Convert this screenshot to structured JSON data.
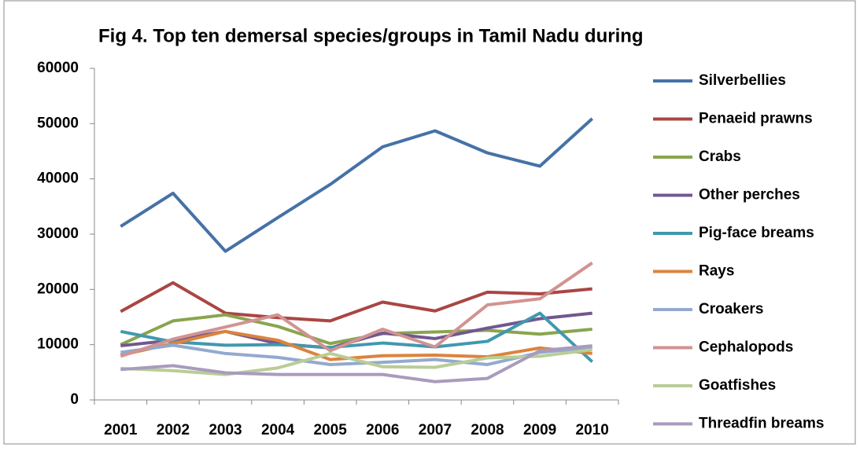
{
  "chart_data": {
    "type": "line",
    "title": "Fig 4. Top ten demersal species/groups in Tamil Nadu during",
    "categories": [
      "2001",
      "2002",
      "2003",
      "2004",
      "2005",
      "2006",
      "2007",
      "2008",
      "2009",
      "2010"
    ],
    "ylim": [
      0,
      60000
    ],
    "yticks": [
      0,
      10000,
      20000,
      30000,
      40000,
      50000,
      60000
    ],
    "grid": false,
    "legend": "right",
    "series": [
      {
        "name": "Silverbellies",
        "color": "#4572A7",
        "values": [
          31400,
          37400,
          26900,
          33000,
          39000,
          45800,
          48700,
          44700,
          42300,
          50900
        ]
      },
      {
        "name": "Penaeid prawns",
        "color": "#AA4643",
        "values": [
          16000,
          21200,
          15700,
          14900,
          14300,
          17700,
          16100,
          19500,
          19200,
          20100
        ]
      },
      {
        "name": "Crabs",
        "color": "#89A54E",
        "values": [
          10000,
          14300,
          15400,
          13300,
          10200,
          12000,
          12300,
          12600,
          11900,
          12800
        ]
      },
      {
        "name": "Other perches",
        "color": "#71588F",
        "values": [
          9800,
          10800,
          12400,
          10200,
          9400,
          12100,
          11100,
          13000,
          14700,
          15700
        ]
      },
      {
        "name": "Pig-face breams",
        "color": "#4198AF",
        "values": [
          12400,
          10500,
          9900,
          10000,
          9500,
          10300,
          9600,
          10600,
          15700,
          6900
        ]
      },
      {
        "name": "Rays",
        "color": "#DB843D",
        "values": [
          8100,
          10200,
          12400,
          10800,
          7300,
          8000,
          8100,
          7800,
          9400,
          8400
        ]
      },
      {
        "name": "Croakers",
        "color": "#93A9CF",
        "values": [
          8600,
          9900,
          8400,
          7700,
          6400,
          6800,
          7300,
          6400,
          8600,
          9500
        ]
      },
      {
        "name": "Cephalopods",
        "color": "#D19392",
        "values": [
          7900,
          11000,
          13200,
          15400,
          8900,
          12800,
          9600,
          17200,
          18300,
          24800
        ]
      },
      {
        "name": "Goatfishes",
        "color": "#B9CD96",
        "values": [
          5700,
          5300,
          4600,
          5800,
          8400,
          6000,
          5900,
          7600,
          7900,
          9100
        ]
      },
      {
        "name": "Threadfin breams",
        "color": "#A99BBD",
        "values": [
          5500,
          6200,
          4900,
          4600,
          4600,
          4600,
          3300,
          3900,
          8900,
          9800
        ]
      }
    ]
  }
}
